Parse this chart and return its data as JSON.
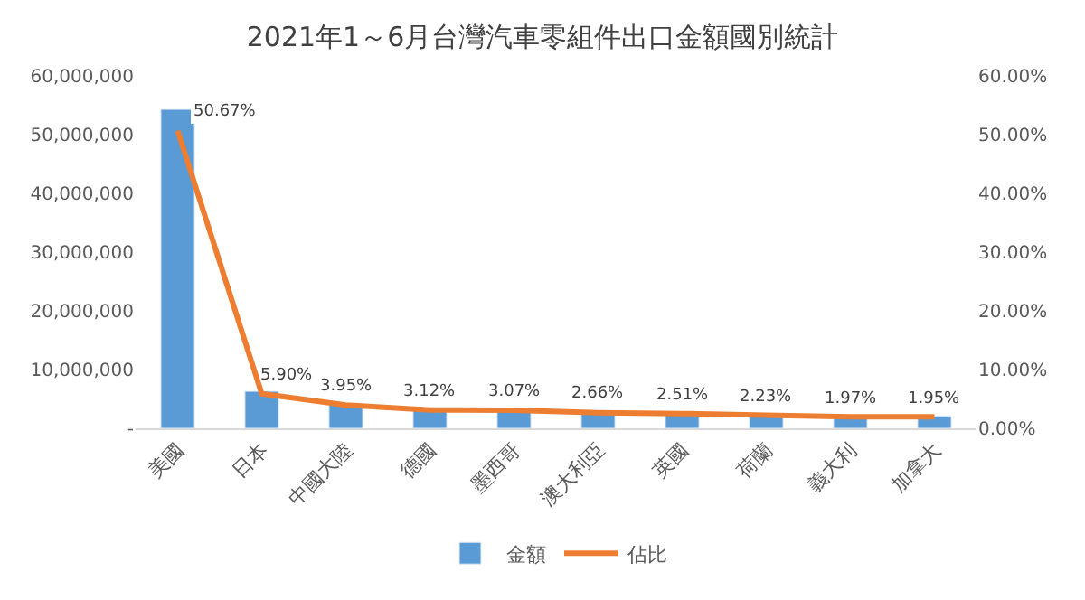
{
  "chart_data": {
    "type": "bar",
    "title": "2021年1～6月台灣汽車零組件出口金額國別統計",
    "categories": [
      "美國",
      "日本",
      "中國大陸",
      "德國",
      "墨西哥",
      "澳大利亞",
      "英國",
      "荷蘭",
      "義大利",
      "加拿大"
    ],
    "series": [
      {
        "name": "金額",
        "color": "#5b9bd5",
        "values": [
          54300000,
          6300000,
          4200000,
          3300000,
          3300000,
          2900000,
          2700000,
          2400000,
          2100000,
          2100000
        ]
      },
      {
        "name": "佔比",
        "type": "line",
        "axis": "y2",
        "color": "#ed7d31",
        "marker": "none",
        "values": [
          50.67,
          5.9,
          3.95,
          3.12,
          3.07,
          2.66,
          2.51,
          2.23,
          1.97,
          1.95
        ],
        "value_labels": [
          "50.67%",
          "5.90%",
          "3.95%",
          "3.12%",
          "3.07%",
          "2.66%",
          "2.51%",
          "2.23%",
          "1.97%",
          "1.95%"
        ]
      }
    ],
    "ylim": [
      0,
      60000000
    ],
    "yticks": [
      {
        "value": 0,
        "label": "-"
      },
      {
        "value": 10000000,
        "label": "10,000,000"
      },
      {
        "value": 20000000,
        "label": "20,000,000"
      },
      {
        "value": 30000000,
        "label": "30,000,000"
      },
      {
        "value": 40000000,
        "label": "40,000,000"
      },
      {
        "value": 50000000,
        "label": "50,000,000"
      },
      {
        "value": 60000000,
        "label": "60,000,000"
      }
    ],
    "y2lim": [
      0,
      60
    ],
    "y2ticks": [
      {
        "value": 0,
        "label": "0.00%"
      },
      {
        "value": 10,
        "label": "10.00%"
      },
      {
        "value": 20,
        "label": "20.00%"
      },
      {
        "value": 30,
        "label": "30.00%"
      },
      {
        "value": 40,
        "label": "40.00%"
      },
      {
        "value": 50,
        "label": "50.00%"
      },
      {
        "value": 60,
        "label": "60.00%"
      }
    ],
    "legend": "bottom"
  }
}
